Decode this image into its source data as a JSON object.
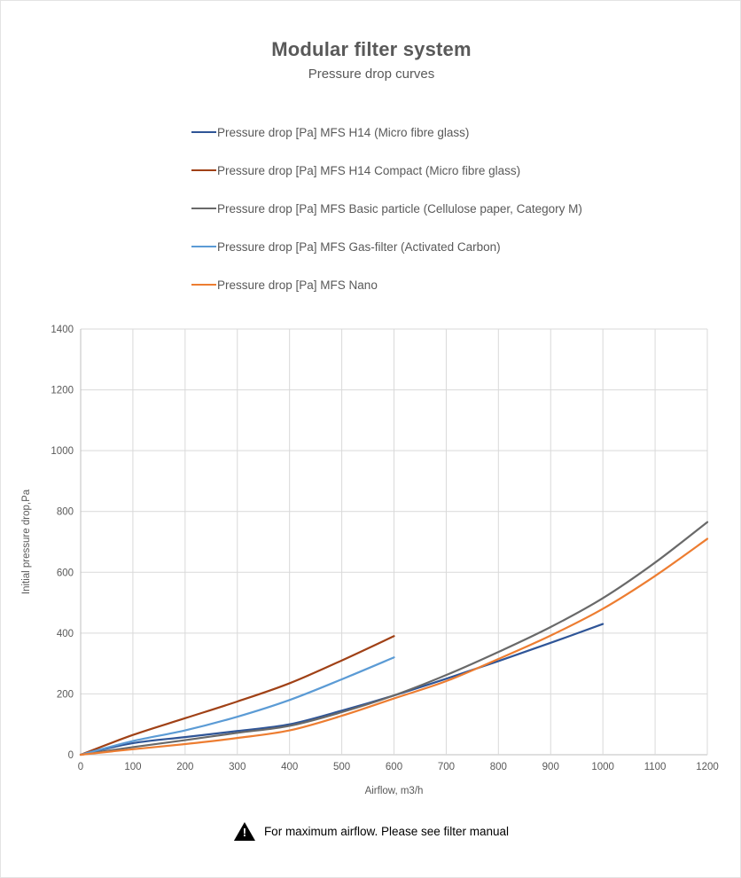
{
  "header": {
    "title": "Modular filter system",
    "subtitle": "Pressure drop curves"
  },
  "chart_data": {
    "type": "line",
    "title": "Modular filter system",
    "subtitle": "Pressure drop curves",
    "xlabel": "Airflow, m3/h",
    "ylabel": "Initial pressure drop,Pa",
    "xlim": [
      0,
      1200
    ],
    "ylim": [
      0,
      1400
    ],
    "x_ticks": [
      0,
      100,
      200,
      300,
      400,
      500,
      600,
      700,
      800,
      900,
      1000,
      1100,
      1200
    ],
    "y_ticks": [
      0,
      200,
      400,
      600,
      800,
      1000,
      1200,
      1400
    ],
    "grid": true,
    "legend_position": "top-left, vertical list above plot",
    "series": [
      {
        "name": "Pressure drop [Pa] MFS H14 (Micro fibre glass)",
        "color": "#2F5597",
        "x": [
          0,
          100,
          200,
          300,
          400,
          500,
          600,
          700,
          800,
          900,
          1000
        ],
        "values": [
          0,
          38,
          58,
          78,
          100,
          145,
          195,
          250,
          308,
          368,
          430
        ]
      },
      {
        "name": "Pressure drop [Pa] MFS H14 Compact (Micro fibre glass)",
        "color": "#A04116",
        "x": [
          0,
          100,
          200,
          300,
          400,
          500,
          600
        ],
        "values": [
          0,
          65,
          120,
          175,
          235,
          310,
          390
        ]
      },
      {
        "name": "Pressure drop [Pa] MFS Basic particle (Cellulose paper, Category M)",
        "color": "#696969",
        "x": [
          0,
          100,
          200,
          300,
          400,
          500,
          600,
          700,
          800,
          900,
          1000,
          1100,
          1200
        ],
        "values": [
          0,
          25,
          48,
          72,
          95,
          140,
          195,
          262,
          338,
          420,
          515,
          632,
          765
        ]
      },
      {
        "name": "Pressure drop [Pa] MFS Gas-filter (Activated Carbon)",
        "color": "#5B9BD5",
        "x": [
          0,
          100,
          200,
          300,
          400,
          500,
          600
        ],
        "values": [
          0,
          45,
          80,
          125,
          180,
          248,
          320
        ]
      },
      {
        "name": "Pressure drop [Pa] MFS Nano",
        "color": "#ED7D31",
        "x": [
          0,
          100,
          200,
          300,
          400,
          500,
          600,
          700,
          800,
          900,
          1000,
          1100,
          1200
        ],
        "values": [
          0,
          18,
          35,
          55,
          80,
          128,
          185,
          242,
          315,
          392,
          480,
          588,
          710
        ]
      }
    ],
    "colors": {
      "gridline": "#D9D9D9",
      "axis_line": "#BFBFBF",
      "tick_text": "#595959"
    }
  },
  "footer": {
    "icon": "warning-icon",
    "text": "For maximum airflow. Please see filter manual"
  }
}
